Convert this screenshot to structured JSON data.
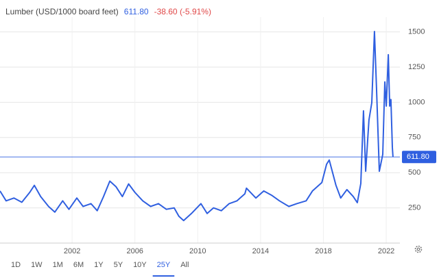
{
  "chart_data": {
    "type": "line",
    "title": "Lumber (USD/1000 board feet)",
    "last_price": "611.80",
    "change": "-38.60 (-5.91%)",
    "x": [
      1997.41,
      1997.8,
      1998.3,
      1998.8,
      1999.3,
      1999.6,
      2000.0,
      2000.5,
      2000.9,
      2001.4,
      2001.8,
      2002.3,
      2002.7,
      2003.2,
      2003.6,
      2004.0,
      2004.4,
      2004.8,
      2005.2,
      2005.6,
      2006.0,
      2006.5,
      2007.0,
      2007.5,
      2008.0,
      2008.5,
      2008.8,
      2009.1,
      2009.6,
      2010.2,
      2010.6,
      2011.0,
      2011.5,
      2012.0,
      2012.5,
      2013.0,
      2013.1,
      2013.7,
      2014.2,
      2014.7,
      2015.2,
      2015.8,
      2016.3,
      2016.9,
      2017.3,
      2017.9,
      2018.2,
      2018.37,
      2018.8,
      2019.1,
      2019.5,
      2019.9,
      2020.16,
      2020.38,
      2020.55,
      2020.69,
      2020.9,
      2021.08,
      2021.25,
      2021.38,
      2021.56,
      2021.65,
      2021.78,
      2021.91,
      2022.0,
      2022.13,
      2022.22,
      2022.3,
      2022.39,
      2022.43
    ],
    "series": [
      {
        "name": "Lumber",
        "color": "#2f5fe0",
        "values": [
          370,
          300,
          320,
          290,
          360,
          410,
          330,
          260,
          220,
          300,
          240,
          320,
          260,
          280,
          230,
          330,
          440,
          400,
          330,
          420,
          360,
          300,
          260,
          280,
          240,
          250,
          190,
          160,
          210,
          280,
          210,
          250,
          230,
          280,
          300,
          350,
          390,
          320,
          370,
          340,
          300,
          260,
          280,
          300,
          370,
          430,
          560,
          590,
          410,
          320,
          380,
          330,
          287,
          423,
          939,
          510,
          875,
          997,
          1503,
          1100,
          510,
          560,
          630,
          1145,
          973,
          1338,
          973,
          1020,
          680,
          611.8
        ]
      }
    ],
    "xlim": [
      1997.41,
      2022.87
    ],
    "ylim": [
      0,
      1605
    ],
    "xticks": [
      2002,
      2006,
      2010,
      2014,
      2018,
      2022
    ],
    "yticks": [
      250,
      500,
      750,
      1000,
      1250,
      1500
    ],
    "grid": true,
    "ranges": [
      "1D",
      "1W",
      "1M",
      "6M",
      "1Y",
      "5Y",
      "10Y",
      "25Y",
      "All"
    ],
    "selected_range": "25Y"
  }
}
